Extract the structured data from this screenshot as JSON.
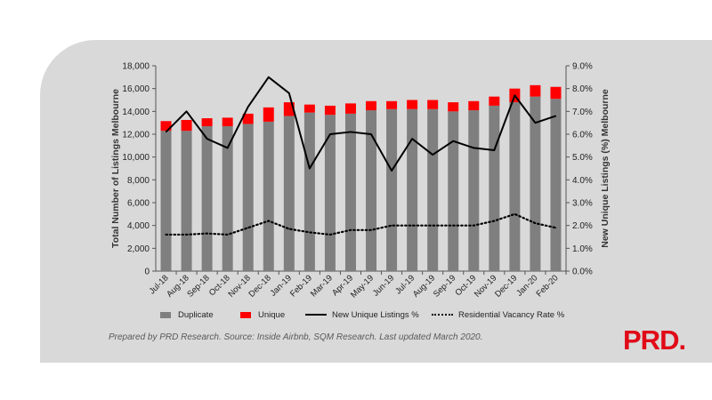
{
  "chart_data": {
    "type": "bar",
    "categories": [
      "Jul-18",
      "Aug-18",
      "Sep-18",
      "Oct-18",
      "Nov-18",
      "Dec-18",
      "Jan-19",
      "Feb-19",
      "Mar-19",
      "Apr-19",
      "May-19",
      "Jun-19",
      "Jul-19",
      "Aug-19",
      "Sep-19",
      "Oct-19",
      "Nov-19",
      "Dec-19",
      "Jan-20",
      "Feb-20"
    ],
    "series": [
      {
        "name": "Duplicate",
        "kind": "bar-stacked",
        "axis": "left",
        "color": "#7f7f7f",
        "values": [
          12300,
          12300,
          12700,
          12700,
          12900,
          13100,
          13600,
          13900,
          13700,
          13800,
          14100,
          14200,
          14200,
          14200,
          14000,
          14100,
          14500,
          14800,
          15300,
          15100
        ]
      },
      {
        "name": "Unique",
        "kind": "bar-stacked",
        "axis": "left",
        "color": "#ff0000",
        "values": [
          850,
          950,
          700,
          750,
          900,
          1250,
          1200,
          700,
          800,
          900,
          800,
          700,
          800,
          800,
          800,
          800,
          800,
          1200,
          1000,
          1050
        ]
      },
      {
        "name": "New Unique Listings %",
        "kind": "line",
        "axis": "right",
        "color": "#000000",
        "dash": "solid",
        "values": [
          6.1,
          7.0,
          5.8,
          5.4,
          7.2,
          8.5,
          7.8,
          4.5,
          6.0,
          6.1,
          6.0,
          4.4,
          5.8,
          5.1,
          5.7,
          5.4,
          5.3,
          7.7,
          6.5,
          6.8
        ]
      },
      {
        "name": "Residential Vacancy Rate %",
        "kind": "line",
        "axis": "right",
        "color": "#000000",
        "dash": "dotted",
        "values": [
          1.6,
          1.6,
          1.65,
          1.6,
          1.9,
          2.2,
          1.85,
          1.7,
          1.6,
          1.8,
          1.8,
          2.0,
          2.0,
          2.0,
          2.0,
          2.0,
          2.2,
          2.5,
          2.1,
          1.9
        ]
      }
    ],
    "ylabel": "Total Number of Listings  Melbourne",
    "y2label": "New Unique Listings (%) Melbourne",
    "ylim": [
      0,
      18000
    ],
    "y2lim": [
      0,
      9
    ],
    "yticks": [
      "0",
      "2,000",
      "4,000",
      "6,000",
      "8,000",
      "10,000",
      "12,000",
      "14,000",
      "16,000",
      "18,000"
    ],
    "y2ticks": [
      "0.0%",
      "1.0%",
      "2.0%",
      "3.0%",
      "4.0%",
      "5.0%",
      "6.0%",
      "7.0%",
      "8.0%",
      "9.0%"
    ],
    "grid": false,
    "legend_position": "bottom"
  },
  "footnote": "Prepared by PRD Research. Source: Inside Airbnb, SQM Research. Last updated March 2020.",
  "logo_text": "PRD.",
  "colors": {
    "panel": "#d9d9d9",
    "brand_red": "#e10a17"
  }
}
